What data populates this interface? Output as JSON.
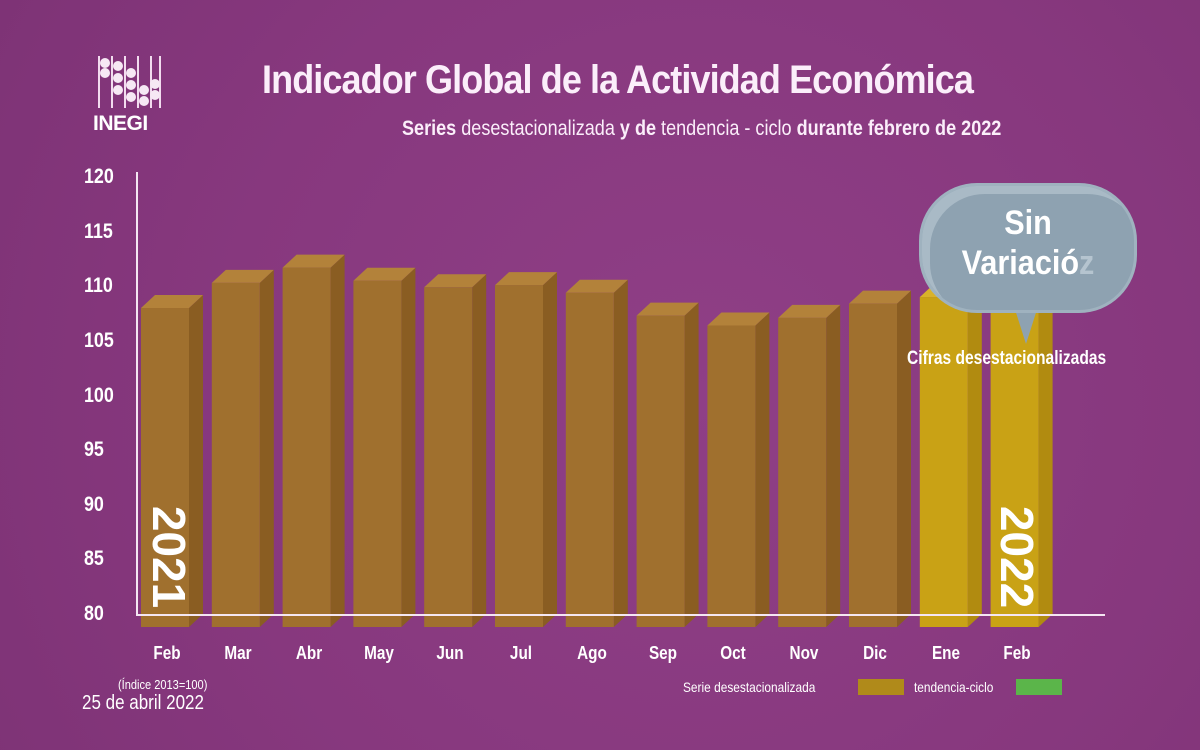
{
  "header": {
    "logo_text": "INEGI",
    "title": "Indicador Global de la Actividad Económica",
    "subtitle_parts": [
      "Series",
      " desestacionalizada ",
      "y de",
      " tendencia - ciclo ",
      "durante febrero de 2022"
    ]
  },
  "chart_data": {
    "type": "bar",
    "title": "Indicador Global de la Actividad Económica",
    "subtitle": "Series desestacionalizada y de tendencia - ciclo durante febrero de 2022",
    "categories": [
      "Feb",
      "Mar",
      "Abr",
      "May",
      "Jun",
      "Jul",
      "Ago",
      "Sep",
      "Oct",
      "Nov",
      "Dic",
      "Ene",
      "Feb"
    ],
    "series": [
      {
        "name": "Serie desestacionalizada",
        "values": [
          108.1,
          110.4,
          111.8,
          110.6,
          110.0,
          110.2,
          109.5,
          107.4,
          106.5,
          107.2,
          108.5,
          109.1,
          109.1
        ]
      }
    ],
    "ylim": [
      80,
      120
    ],
    "yticks": [
      120,
      115,
      110,
      105,
      100,
      95,
      90,
      85,
      80
    ],
    "year_labels": [
      "2021",
      "2022"
    ],
    "legend": [
      {
        "label": "Serie desestacionalizada",
        "color": "#b08a1a"
      },
      {
        "label": "tendencia-ciclo",
        "color": "#5bb54a"
      }
    ],
    "legend_placement": "bottom-right",
    "annotation": {
      "line1": "Sin",
      "line2": "Variació",
      "line2_faded": "z",
      "caption": "Cifras desestacionalizadas"
    },
    "note": "(Índice 2013=100)",
    "grid": false
  },
  "footer": {
    "date": "25 de abril 2022"
  },
  "colors": {
    "background": "#87387e",
    "bar_2021": "#a0702e",
    "bar_2022": "#c9a215",
    "bubble": "#8ea2b1"
  }
}
